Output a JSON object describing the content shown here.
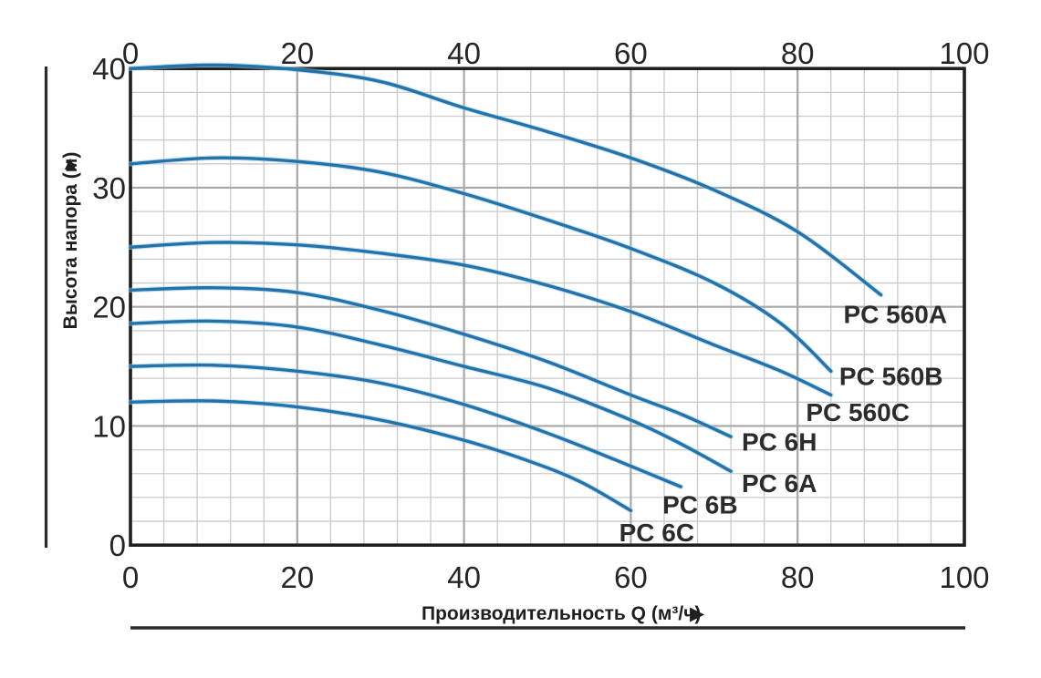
{
  "chart_data": {
    "type": "line",
    "title": "",
    "xlabel": "Производительность Q (м³/ч)",
    "ylabel": "Высота напора (м)",
    "xlim": [
      0,
      100
    ],
    "ylim": [
      0,
      40
    ],
    "x_major_ticks": [
      0,
      20,
      40,
      60,
      80,
      100
    ],
    "y_major_ticks": [
      0,
      10,
      20,
      30,
      40
    ],
    "x_minor_step": 4,
    "y_minor_step": 2,
    "grid": true,
    "x_axis_position": "both-top-and-bottom",
    "legend_position": "inline-labels-right",
    "colors": {
      "curve": "#2173ab",
      "curve_halo": "#9ec9e2",
      "grid_minor": "#cbcbcb",
      "grid_major": "#a8a8a8",
      "axis_frame": "#1f1f1f",
      "text": "#262626"
    },
    "series": [
      {
        "name": "PC 560A",
        "points": [
          [
            0,
            40
          ],
          [
            10,
            40.3
          ],
          [
            20,
            39.9
          ],
          [
            30,
            38.9
          ],
          [
            40,
            36.7
          ],
          [
            50,
            34.7
          ],
          [
            60,
            32.5
          ],
          [
            70,
            29.8
          ],
          [
            80,
            26.3
          ],
          [
            90,
            21.0
          ]
        ],
        "label_pos": [
          85.5,
          19.4
        ]
      },
      {
        "name": "PC 560B",
        "points": [
          [
            0,
            32
          ],
          [
            10,
            32.5
          ],
          [
            20,
            32.2
          ],
          [
            30,
            31.3
          ],
          [
            40,
            29.5
          ],
          [
            50,
            27.3
          ],
          [
            60,
            24.9
          ],
          [
            70,
            22.0
          ],
          [
            78,
            18.6
          ],
          [
            84,
            14.6
          ]
        ],
        "label_pos": [
          85.0,
          14.2
        ]
      },
      {
        "name": "PC 560C",
        "points": [
          [
            0,
            25
          ],
          [
            10,
            25.4
          ],
          [
            20,
            25.2
          ],
          [
            30,
            24.5
          ],
          [
            40,
            23.5
          ],
          [
            50,
            21.8
          ],
          [
            60,
            19.6
          ],
          [
            70,
            16.8
          ],
          [
            78,
            14.6
          ],
          [
            84,
            12.6
          ]
        ],
        "label_pos": [
          81.0,
          11.2
        ]
      },
      {
        "name": "PC 6H",
        "points": [
          [
            0,
            21.4
          ],
          [
            10,
            21.6
          ],
          [
            20,
            21.2
          ],
          [
            30,
            19.7
          ],
          [
            40,
            17.7
          ],
          [
            50,
            15.4
          ],
          [
            60,
            12.6
          ],
          [
            66,
            11.0
          ],
          [
            72,
            9.1
          ]
        ],
        "label_pos": [
          73.3,
          8.7
        ]
      },
      {
        "name": "PC 6A",
        "points": [
          [
            0,
            18.6
          ],
          [
            10,
            18.8
          ],
          [
            20,
            18.3
          ],
          [
            30,
            16.8
          ],
          [
            40,
            15.0
          ],
          [
            50,
            13.2
          ],
          [
            60,
            10.5
          ],
          [
            66,
            8.5
          ],
          [
            72,
            6.2
          ]
        ],
        "label_pos": [
          73.3,
          5.2
        ]
      },
      {
        "name": "PC 6B",
        "points": [
          [
            0,
            15
          ],
          [
            10,
            15.1
          ],
          [
            20,
            14.6
          ],
          [
            30,
            13.6
          ],
          [
            40,
            11.8
          ],
          [
            50,
            9.4
          ],
          [
            58,
            7.2
          ],
          [
            66,
            4.9
          ]
        ],
        "label_pos": [
          63.8,
          3.4
        ]
      },
      {
        "name": "PC 6C",
        "points": [
          [
            0,
            12
          ],
          [
            10,
            12.1
          ],
          [
            20,
            11.6
          ],
          [
            30,
            10.5
          ],
          [
            40,
            8.8
          ],
          [
            48,
            7.0
          ],
          [
            54,
            5.3
          ],
          [
            60,
            2.9
          ]
        ],
        "label_pos": [
          58.6,
          1.1
        ]
      }
    ]
  },
  "icons": {
    "x_axis_arrow": "▶",
    "y_axis_arrow": "▲"
  }
}
